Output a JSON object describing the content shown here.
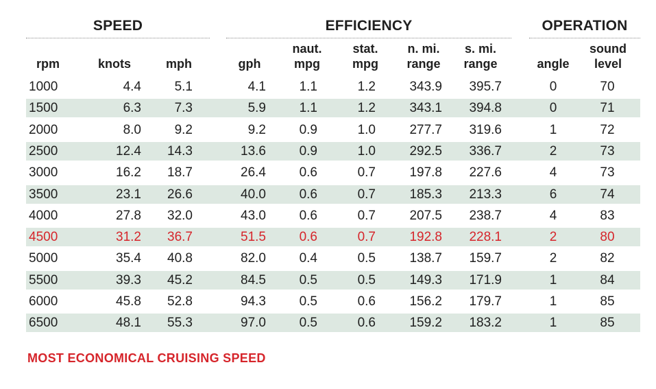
{
  "chart_data": {
    "type": "table",
    "groups": [
      {
        "label": "SPEED"
      },
      {
        "label": "EFFICIENCY"
      },
      {
        "label": "OPERATION"
      }
    ],
    "columns": [
      {
        "key": "rpm",
        "lines": [
          "",
          "rpm"
        ]
      },
      {
        "key": "knots",
        "lines": [
          "",
          "knots"
        ]
      },
      {
        "key": "mph",
        "lines": [
          "",
          "mph"
        ]
      },
      {
        "key": "gph",
        "lines": [
          "",
          "gph"
        ]
      },
      {
        "key": "naut_mpg",
        "lines": [
          "naut.",
          "mpg"
        ]
      },
      {
        "key": "stat_mpg",
        "lines": [
          "stat.",
          "mpg"
        ]
      },
      {
        "key": "n_mi_range",
        "lines": [
          "n. mi.",
          "range"
        ]
      },
      {
        "key": "s_mi_range",
        "lines": [
          "s. mi.",
          "range"
        ]
      },
      {
        "key": "angle",
        "lines": [
          "",
          "angle"
        ]
      },
      {
        "key": "sound_level",
        "lines": [
          "sound",
          "level"
        ]
      }
    ],
    "rows": [
      [
        "1000",
        "4.4",
        "5.1",
        "4.1",
        "1.1",
        "1.2",
        "343.9",
        "395.7",
        "0",
        "70"
      ],
      [
        "1500",
        "6.3",
        "7.3",
        "5.9",
        "1.1",
        "1.2",
        "343.1",
        "394.8",
        "0",
        "71"
      ],
      [
        "2000",
        "8.0",
        "9.2",
        "9.2",
        "0.9",
        "1.0",
        "277.7",
        "319.6",
        "1",
        "72"
      ],
      [
        "2500",
        "12.4",
        "14.3",
        "13.6",
        "0.9",
        "1.0",
        "292.5",
        "336.7",
        "2",
        "73"
      ],
      [
        "3000",
        "16.2",
        "18.7",
        "26.4",
        "0.6",
        "0.7",
        "197.8",
        "227.6",
        "4",
        "73"
      ],
      [
        "3500",
        "23.1",
        "26.6",
        "40.0",
        "0.6",
        "0.7",
        "185.3",
        "213.3",
        "6",
        "74"
      ],
      [
        "4000",
        "27.8",
        "32.0",
        "43.0",
        "0.6",
        "0.7",
        "207.5",
        "238.7",
        "4",
        "83"
      ],
      [
        "4500",
        "31.2",
        "36.7",
        "51.5",
        "0.6",
        "0.7",
        "192.8",
        "228.1",
        "2",
        "80"
      ],
      [
        "5000",
        "35.4",
        "40.8",
        "82.0",
        "0.4",
        "0.5",
        "138.7",
        "159.7",
        "2",
        "82"
      ],
      [
        "5500",
        "39.3",
        "45.2",
        "84.5",
        "0.5",
        "0.5",
        "149.3",
        "171.9",
        "1",
        "84"
      ],
      [
        "6000",
        "45.8",
        "52.8",
        "94.3",
        "0.5",
        "0.6",
        "156.2",
        "179.7",
        "1",
        "85"
      ],
      [
        "6500",
        "48.1",
        "55.3",
        "97.0",
        "0.5",
        "0.6",
        "159.2",
        "183.2",
        "1",
        "85"
      ]
    ],
    "highlighted_row_index": 7,
    "highlight_color": "#d6252b",
    "band_color": "#dde8e1",
    "legend_note": "MOST ECONOMICAL CRUISING SPEED"
  }
}
